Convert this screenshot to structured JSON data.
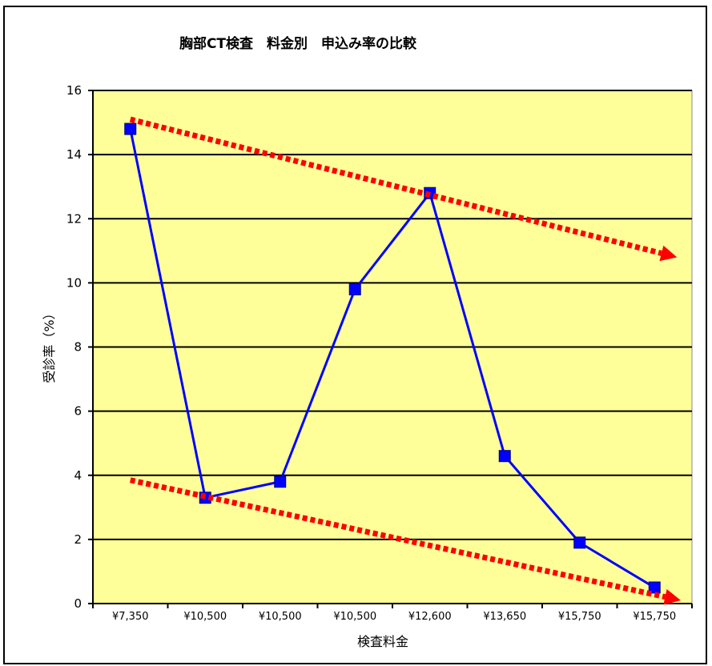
{
  "chart_data": {
    "type": "line",
    "title": "胸部CT検査　料金別　申込み率の比較",
    "xlabel": "検査料金",
    "ylabel": "受診率（%）",
    "categories": [
      "¥7,350",
      "¥10,500",
      "¥10,500",
      "¥10,500",
      "¥12,600",
      "¥13,650",
      "¥15,750",
      "¥15,750"
    ],
    "series": [
      {
        "values": [
          14.8,
          3.3,
          3.8,
          9.8,
          12.8,
          4.6,
          1.9,
          0.5
        ],
        "color": "#0000ff"
      }
    ],
    "ylim": [
      0,
      16
    ],
    "yticks": [
      0,
      2,
      4,
      6,
      8,
      10,
      12,
      14,
      16
    ],
    "grid": true,
    "plot_background": "#ffff99",
    "annotations": [
      {
        "type": "trend-arrow",
        "from": [
          0,
          15.1
        ],
        "to": [
          7.3,
          10.8
        ],
        "color": "#ff0000",
        "style": "dotted"
      },
      {
        "type": "trend-arrow",
        "from": [
          0,
          3.85
        ],
        "to": [
          7.35,
          0.1
        ],
        "color": "#ff0000",
        "style": "dotted"
      }
    ]
  }
}
